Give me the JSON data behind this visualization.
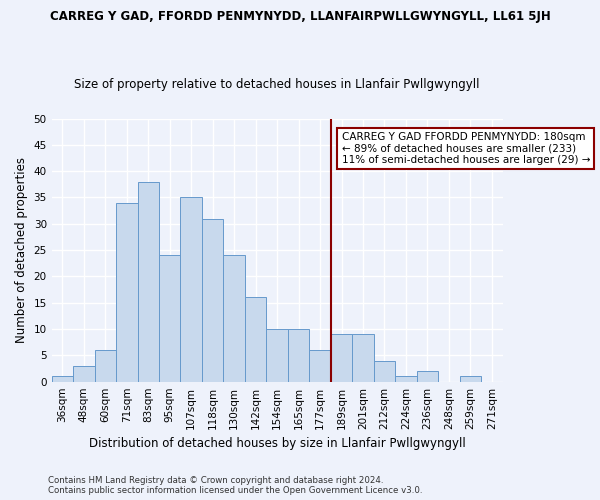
{
  "title": "CARREG Y GAD, FFORDD PENMYNYDD, LLANFAIRPWLLGWYNGYLL, LL61 5JH",
  "subtitle": "Size of property relative to detached houses in Llanfair Pwllgwyngyll",
  "xlabel": "Distribution of detached houses by size in Llanfair Pwllgwyngyll",
  "ylabel": "Number of detached properties",
  "footer_line1": "Contains HM Land Registry data © Crown copyright and database right 2024.",
  "footer_line2": "Contains public sector information licensed under the Open Government Licence v3.0.",
  "bin_labels": [
    "36sqm",
    "48sqm",
    "60sqm",
    "71sqm",
    "83sqm",
    "95sqm",
    "107sqm",
    "118sqm",
    "130sqm",
    "142sqm",
    "154sqm",
    "165sqm",
    "177sqm",
    "189sqm",
    "201sqm",
    "212sqm",
    "224sqm",
    "236sqm",
    "248sqm",
    "259sqm",
    "271sqm"
  ],
  "bar_values": [
    1,
    3,
    6,
    34,
    38,
    24,
    35,
    31,
    24,
    16,
    10,
    10,
    6,
    9,
    9,
    4,
    1,
    2,
    0,
    1,
    0
  ],
  "bar_color": "#c8d9ed",
  "bar_edge_color": "#6699cc",
  "vline_color": "#8b0000",
  "ylim": [
    0,
    50
  ],
  "yticks": [
    0,
    5,
    10,
    15,
    20,
    25,
    30,
    35,
    40,
    45,
    50
  ],
  "annotation_title": "CARREG Y GAD FFORDD PENMYNYDD: 180sqm",
  "annotation_line2": "← 89% of detached houses are smaller (233)",
  "annotation_line3": "11% of semi-detached houses are larger (29) →",
  "annotation_box_color": "#8b0000",
  "background_color": "#eef2fb",
  "grid_color": "#ffffff"
}
